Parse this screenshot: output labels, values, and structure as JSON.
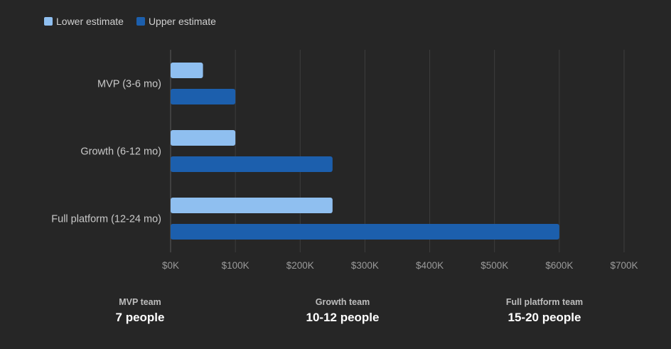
{
  "chart_data": {
    "type": "bar",
    "orientation": "horizontal",
    "title": "",
    "xlabel": "",
    "ylabel": "",
    "categories": [
      "MVP (3-6 mo)",
      "Growth (6-12 mo)",
      "Full platform (12-24 mo)"
    ],
    "series": [
      {
        "name": "Lower estimate",
        "color": "#8fbff0",
        "values": [
          50000,
          100000,
          250000
        ]
      },
      {
        "name": "Upper estimate",
        "color": "#1c5fad",
        "values": [
          100000,
          250000,
          600000
        ]
      }
    ],
    "xlim": [
      0,
      700000
    ],
    "xticks": [
      0,
      100000,
      200000,
      300000,
      400000,
      500000,
      600000,
      700000
    ],
    "xtick_labels": [
      "$0K",
      "$100K",
      "$200K",
      "$300K",
      "$400K",
      "$500K",
      "$600K",
      "$700K"
    ],
    "grid": true,
    "legend_position": "top-left"
  },
  "legend": {
    "lower_label": "Lower estimate",
    "upper_label": "Upper estimate",
    "lower_color": "#8fbff0",
    "upper_color": "#1c5fad"
  },
  "stats": [
    {
      "label": "MVP team",
      "value": "7 people"
    },
    {
      "label": "Growth team",
      "value": "10-12 people"
    },
    {
      "label": "Full platform team",
      "value": "15-20 people"
    }
  ]
}
